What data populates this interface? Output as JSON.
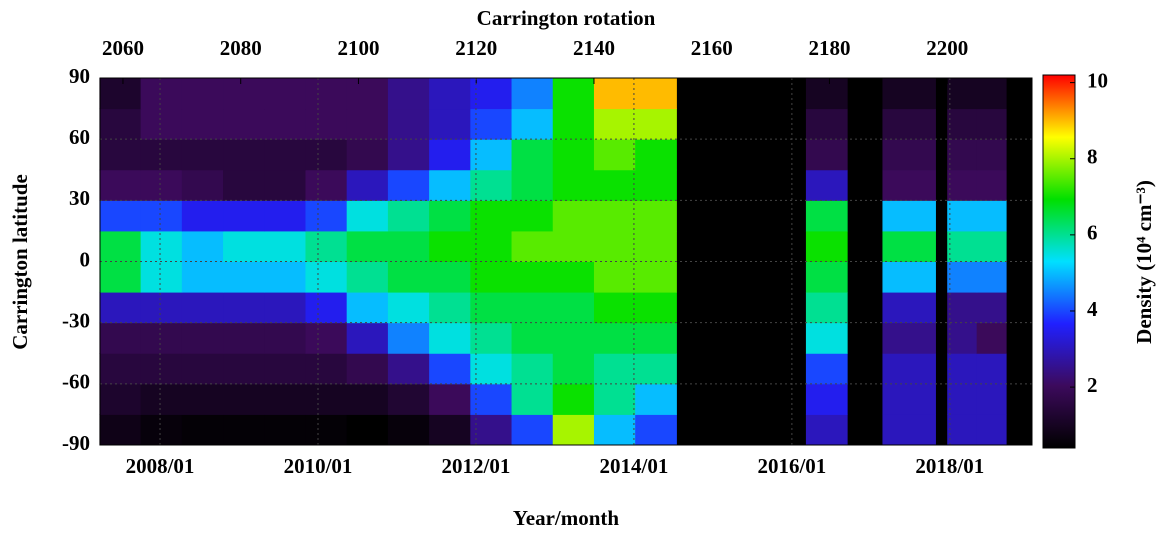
{
  "chart_data": {
    "type": "heatmap",
    "top_axis_label": "Carrington rotation",
    "xlabel": "Year/month",
    "ylabel": "Carrington latitude",
    "colorbar_label": "Density (10⁴ cm⁻³)",
    "xbins": [
      2056,
      2063,
      2070,
      2077,
      2084,
      2091,
      2098,
      2105,
      2112,
      2119,
      2126,
      2133,
      2140,
      2147,
      2154,
      2176,
      2183,
      2189,
      2198,
      2200,
      2205,
      2210,
      2214
    ],
    "ybins": [
      -90,
      -75,
      -60,
      -45,
      -30,
      -15,
      0,
      15,
      30,
      45,
      60,
      75,
      90
    ],
    "z": [
      [
        0.8,
        0.6,
        0.5,
        0.5,
        0.5,
        0.5,
        0.4,
        0.6,
        1.0,
        2.5,
        4,
        8,
        5,
        4,
        null,
        3,
        null,
        3,
        null,
        3,
        3,
        null
      ],
      [
        1.2,
        1.0,
        1.0,
        1.0,
        1.0,
        1.0,
        1.0,
        1.3,
        2,
        4,
        6,
        7,
        6,
        5,
        null,
        3.5,
        null,
        3,
        null,
        3,
        3,
        null
      ],
      [
        1.5,
        1.5,
        1.5,
        1.5,
        1.5,
        1.5,
        1.8,
        2.5,
        4,
        5.5,
        6,
        6.5,
        6,
        6,
        null,
        4,
        null,
        3,
        null,
        3,
        3,
        null
      ],
      [
        1.8,
        1.8,
        1.8,
        1.8,
        1.8,
        2,
        3,
        4.5,
        5.5,
        6,
        6.5,
        6.5,
        6.5,
        6.5,
        null,
        5.5,
        null,
        2.5,
        null,
        2.5,
        2,
        null
      ],
      [
        3,
        3,
        3,
        3,
        3,
        3.5,
        5,
        5.5,
        6,
        6.5,
        6.5,
        6.5,
        7,
        7,
        null,
        6,
        null,
        3,
        null,
        2.5,
        2.5,
        null
      ],
      [
        6.5,
        5.5,
        5,
        5,
        5,
        5.5,
        6,
        6.5,
        6.5,
        7,
        7,
        7,
        7.5,
        7.5,
        null,
        6.5,
        null,
        5,
        null,
        4.5,
        4.5,
        null
      ],
      [
        6.5,
        5.5,
        5,
        5.5,
        5.5,
        6,
        6.5,
        6.5,
        7,
        7,
        7.5,
        7.5,
        7.5,
        7.5,
        null,
        7,
        null,
        6.5,
        null,
        6,
        6,
        null
      ],
      [
        4,
        4,
        3.5,
        3.5,
        3.5,
        4,
        5.5,
        6,
        6.5,
        7,
        7,
        7.5,
        7.5,
        7.5,
        null,
        6.5,
        null,
        5,
        null,
        5,
        5,
        null
      ],
      [
        2,
        2,
        1.8,
        1.5,
        1.5,
        2,
        3,
        4,
        5,
        6,
        6.5,
        7,
        7,
        7,
        null,
        3,
        null,
        2,
        null,
        2,
        2,
        null
      ],
      [
        1.5,
        1.5,
        1.5,
        1.5,
        1.5,
        1.5,
        1.8,
        2.5,
        3.5,
        5,
        6.5,
        7,
        7.5,
        7,
        null,
        1.8,
        null,
        1.8,
        null,
        1.8,
        1.8,
        null
      ],
      [
        1.5,
        2,
        2,
        2,
        2,
        2,
        2,
        2.5,
        3,
        4,
        5,
        7,
        8,
        8,
        null,
        1.5,
        null,
        1.5,
        null,
        1.5,
        1.5,
        null
      ],
      [
        1.2,
        2,
        2,
        2,
        2,
        2,
        2,
        2.5,
        3,
        3.5,
        4.5,
        7,
        9,
        9,
        null,
        1,
        null,
        1,
        null,
        1,
        1,
        null
      ]
    ],
    "xlim": [
      2056.1,
      2214.4
    ],
    "xticks": [
      2060,
      2080,
      2100,
      2120,
      2140,
      2160,
      2180,
      2200
    ],
    "x2lim": [
      2007.24,
      2019.04
    ],
    "x2ticks": [
      {
        "value": 2008,
        "label": "2008/01"
      },
      {
        "value": 2010,
        "label": "2010/01"
      },
      {
        "value": 2012,
        "label": "2012/01"
      },
      {
        "value": 2014,
        "label": "2014/01"
      },
      {
        "value": 2016,
        "label": "2016/01"
      },
      {
        "value": 2018,
        "label": "2018/01"
      }
    ],
    "ylim": [
      -90,
      90
    ],
    "yticks": [
      -90,
      -60,
      -30,
      0,
      30,
      60,
      90
    ],
    "zlim": [
      0.4,
      10.2
    ],
    "zticks": [
      2,
      4,
      6,
      8,
      10
    ],
    "colormap": [
      "#000000",
      "#3c0a5c",
      "#2020ff",
      "#00e0ff",
      "#00e000",
      "#ffff00",
      "#ff0000"
    ],
    "missing_color": "#000000",
    "grid": true
  }
}
